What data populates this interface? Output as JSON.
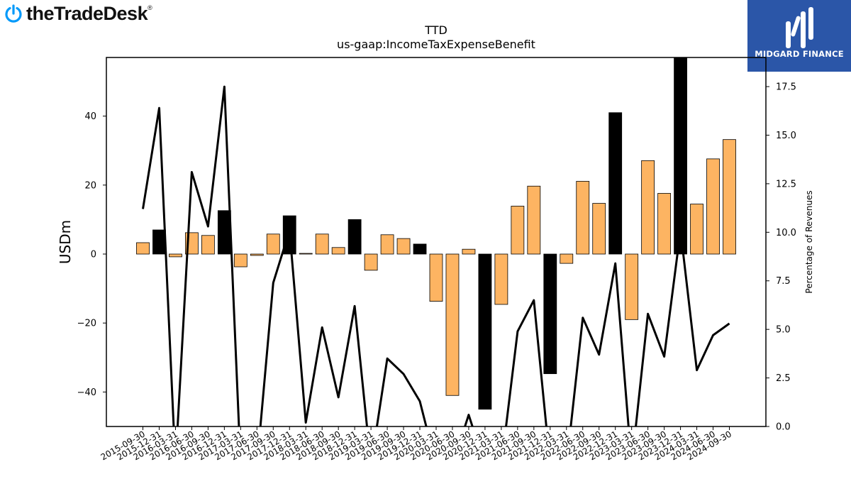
{
  "brand": {
    "name": "theTradeDesk",
    "registered": "®"
  },
  "badge": {
    "name": "MIDGARD FINANCE"
  },
  "colors": {
    "positive_bar": "#fdb462",
    "highlight_bar": "#000000",
    "line": "#000000",
    "badge_bg": "#2b56a8",
    "brand_icon": "#0099fa"
  },
  "chart_data": {
    "type": "bar",
    "title": "TTD",
    "subtitle": "us-gaap:IncomeTaxExpenseBenefit",
    "ylabel": "USDm",
    "y2label": "Percentage of Revenues",
    "ylim": [
      -50,
      57
    ],
    "y2lim": [
      0,
      19
    ],
    "yticks": [
      -40,
      -20,
      0,
      20,
      40
    ],
    "y2ticks": [
      0.0,
      2.5,
      5.0,
      7.5,
      10.0,
      12.5,
      15.0,
      17.5
    ],
    "y2tick_labels": [
      "0.0",
      "2.5",
      "5.0",
      "7.5",
      "10.0",
      "12.5",
      "15.0",
      "17.5"
    ],
    "grid": false,
    "categories": [
      "2015-09-30",
      "2015-12-31",
      "2016-03-31",
      "2016-06-30",
      "2016-09-30",
      "2016-12-31",
      "2017-03-31",
      "2017-06-30",
      "2017-09-30",
      "2017-12-31",
      "2018-03-31",
      "2018-06-30",
      "2018-09-30",
      "2018-12-31",
      "2019-03-31",
      "2019-06-30",
      "2019-09-30",
      "2019-12-31",
      "2020-03-31",
      "2020-06-30",
      "2020-09-30",
      "2020-12-31",
      "2021-03-31",
      "2021-06-30",
      "2021-09-30",
      "2021-12-31",
      "2022-03-31",
      "2022-06-30",
      "2022-09-30",
      "2022-12-31",
      "2023-03-31",
      "2023-06-30",
      "2023-09-30",
      "2023-12-31",
      "2024-03-31",
      "2024-06-30",
      "2024-09-30"
    ],
    "series": [
      {
        "values": [
          3.3,
          7.0,
          -0.8,
          6.2,
          5.4,
          12.6,
          -3.7,
          -0.4,
          5.8,
          11.1,
          0.2,
          5.8,
          1.9,
          10.0,
          -4.7,
          5.6,
          4.5,
          2.9,
          -13.7,
          -41.0,
          1.4,
          -45.0,
          -14.6,
          13.9,
          19.7,
          -34.7,
          -2.7,
          21.1,
          14.7,
          41.0,
          -19.0,
          27.1,
          17.6,
          57.0,
          14.5,
          27.6,
          33.2
        ]
      },
      {
        "values": [
          11.2,
          16.4,
          -2.0,
          13.1,
          10.3,
          17.5,
          -2.0,
          -2.0,
          7.4,
          10.1,
          0.2,
          5.1,
          1.5,
          6.2,
          -2.0,
          3.5,
          2.7,
          1.3,
          -2.0,
          -2.0,
          0.6,
          -2.0,
          -2.0,
          4.9,
          6.5,
          -2.0,
          -2.0,
          5.6,
          3.7,
          8.4,
          -2.0,
          5.8,
          3.6,
          10.1,
          2.9,
          4.7,
          5.3
        ]
      }
    ],
    "highlighted_categories": [
      "2015-12-31",
      "2016-12-31",
      "2017-12-31",
      "2018-12-31",
      "2019-12-31",
      "2020-12-31",
      "2021-12-31",
      "2022-12-31",
      "2023-12-31"
    ]
  }
}
